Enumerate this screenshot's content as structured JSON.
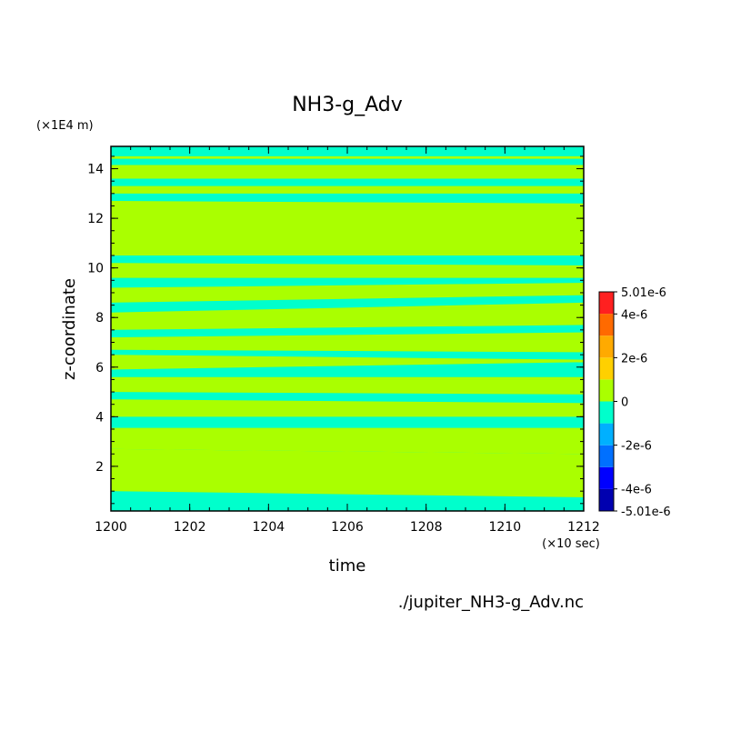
{
  "chart_data": {
    "type": "heatmap",
    "title": "NH3-g_Adv",
    "xlabel": "time",
    "ylabel": "z-coordinate",
    "x_unit": "(×10 sec)",
    "y_unit": "(×1E4 m)",
    "source": "./jupiter_NH3-g_Adv.nc",
    "xlim": [
      1200,
      1212
    ],
    "ylim": [
      0.2,
      14.9
    ],
    "x_ticks": [
      "1200",
      "1202",
      "1204",
      "1206",
      "1208",
      "1210",
      "1212"
    ],
    "x_tick_values": [
      1200,
      1202,
      1204,
      1206,
      1208,
      1210,
      1212
    ],
    "y_ticks": [
      "2",
      "4",
      "6",
      "8",
      "10",
      "12",
      "14"
    ],
    "y_tick_values": [
      2,
      4,
      6,
      8,
      10,
      12,
      14
    ],
    "colorbar": {
      "labels": [
        "5.01e-6",
        "4e-6",
        "2e-6",
        "0",
        "-2e-6",
        "-4e-6",
        "-5.01e-6"
      ],
      "label_values": [
        5.01e-06,
        4e-06,
        2e-06,
        0,
        -2e-06,
        -4e-06,
        -5.01e-06
      ],
      "levels": [
        -5.01e-06,
        -4e-06,
        -3e-06,
        -2e-06,
        -1e-06,
        0,
        1e-06,
        2e-06,
        3e-06,
        4e-06,
        5.01e-06
      ],
      "colors": [
        "#0000b0",
        "#0000ff",
        "#0070ff",
        "#00b0ff",
        "#00ffcc",
        "#aaff00",
        "#ffd000",
        "#ffaa00",
        "#ff6a00",
        "#ff2020"
      ]
    },
    "background_class": "negative",
    "positive_bands": [
      {
        "bottom": [
          2.7,
          2.5
        ],
        "top": [
          3.55,
          3.55
        ]
      },
      {
        "bottom": [
          4.0,
          4.0
        ],
        "top": [
          4.7,
          4.55
        ]
      },
      {
        "bottom": [
          5.0,
          4.9
        ],
        "top": [
          5.6,
          5.6
        ]
      },
      {
        "bottom": [
          5.9,
          6.2
        ],
        "top": [
          6.5,
          6.3
        ]
      },
      {
        "bottom": [
          6.7,
          6.6
        ],
        "top": [
          7.2,
          7.4
        ]
      },
      {
        "bottom": [
          7.5,
          7.7
        ],
        "top": [
          8.2,
          8.6
        ]
      },
      {
        "bottom": [
          8.6,
          8.9
        ],
        "top": [
          9.2,
          9.4
        ]
      },
      {
        "bottom": [
          9.6,
          9.6
        ],
        "top": [
          10.2,
          10.1
        ]
      },
      {
        "bottom": [
          10.5,
          10.5
        ],
        "top": [
          12.7,
          12.6
        ]
      },
      {
        "bottom": [
          13.0,
          13.0
        ],
        "top": [
          13.3,
          13.3
        ]
      },
      {
        "bottom": [
          13.6,
          13.6
        ],
        "top": [
          14.15,
          14.15
        ]
      },
      {
        "bottom": [
          14.4,
          14.4
        ],
        "top": [
          14.5,
          14.5
        ]
      }
    ],
    "bottom_positive_band": {
      "bottom": [
        1.0,
        0.75
      ],
      "top": [
        2.7,
        2.5
      ]
    }
  }
}
